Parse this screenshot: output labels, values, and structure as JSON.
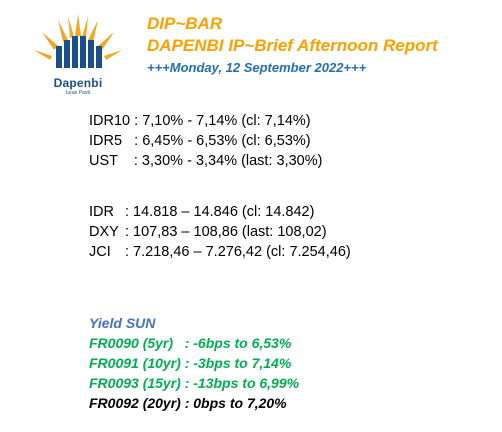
{
  "logo": {
    "name": "Dapenbi",
    "tagline": "Iuran Pasti"
  },
  "header": {
    "title": "DIP~BAR",
    "subtitle": "DAPENBI IP~Brief Afternoon Report",
    "date": "+++Monday, 12 September 2022+++"
  },
  "rates": [
    {
      "label": "IDR10 : ",
      "text": "7,10% - 7,14% (cl: 7,14%)"
    },
    {
      "label": "IDR5   : ",
      "text": "6,45% - 6,53% (cl: 6,53%)"
    },
    {
      "label": "UST    : ",
      "text": "3,30% - 3,34% (last: 3,30%)"
    }
  ],
  "market": [
    {
      "label": "IDR",
      "text": ": 14.818 – 14.846 (cl: 14.842)"
    },
    {
      "label": "DXY",
      "text": ": 107,83 – 108,86 (last: 108,02)"
    },
    {
      "label": "JCI",
      "text": ": 7.218,46 – 7.276,42 (cl: 7.254,46)"
    }
  ],
  "yield": {
    "title": "Yield SUN",
    "lines": [
      {
        "text": "FR0090 (5yr)   : -6bps to 6,53%",
        "color": "#00b050"
      },
      {
        "text": "FR0091 (10yr) : -3bps to 7,14%",
        "color": "#00b050"
      },
      {
        "text": "FR0093 (15yr) : -13bps to 6,99%",
        "color": "#00b050"
      },
      {
        "text": "FR0092 (20yr) : 0bps to 7,20%",
        "color": "#000000"
      }
    ]
  }
}
